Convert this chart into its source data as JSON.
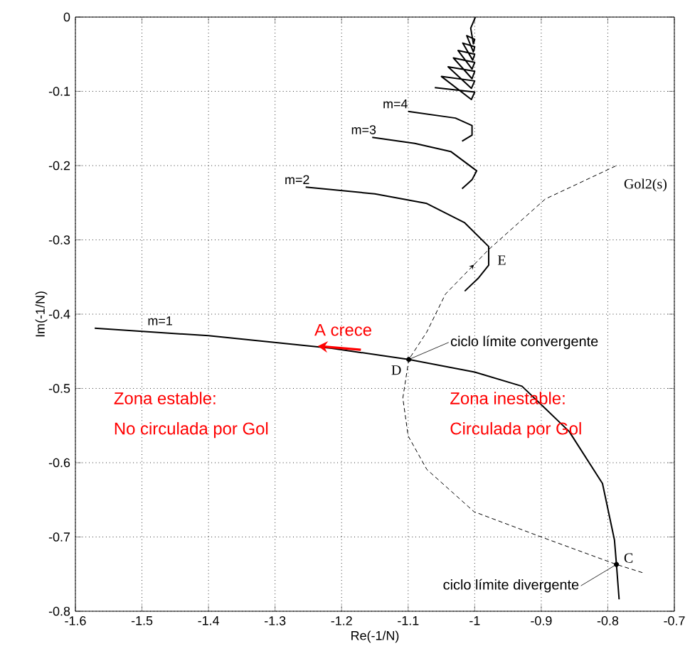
{
  "chart_data": {
    "type": "line",
    "xlabel": "Re(-1/N)",
    "ylabel": "Im(-1/N)",
    "xlim": [
      -1.6,
      -0.7
    ],
    "ylim": [
      -0.8,
      0
    ],
    "xticks": [
      -1.6,
      -1.5,
      -1.4,
      -1.3,
      -1.2,
      -1.1,
      -1,
      -0.9,
      -0.8,
      -0.7
    ],
    "yticks": [
      -0.8,
      -0.7,
      -0.6,
      -0.5,
      -0.4,
      -0.3,
      -0.2,
      -0.1,
      0
    ],
    "grid": true,
    "series": [
      {
        "name": "m=1",
        "type": "line",
        "color": "#000000",
        "line_style": "solid",
        "marker": "none",
        "x": [
          -1.571,
          -1.4,
          -1.215,
          -1.099,
          -1.0,
          -0.929,
          -0.858,
          -0.808,
          -0.79,
          -0.787,
          -0.783
        ],
        "values": [
          -0.419,
          -0.429,
          -0.446,
          -0.461,
          -0.478,
          -0.497,
          -0.558,
          -0.628,
          -0.704,
          -0.737,
          -0.784
        ]
      },
      {
        "name": "m=2",
        "type": "line",
        "color": "#000000",
        "line_style": "solid",
        "marker": "none",
        "x": [
          -1.254,
          -1.15,
          -1.072,
          -1.015,
          -0.979,
          -0.979,
          -0.995,
          -1.015
        ],
        "values": [
          -0.229,
          -0.238,
          -0.251,
          -0.277,
          -0.309,
          -0.334,
          -0.352,
          -0.369
        ]
      },
      {
        "name": "m=3",
        "type": "line",
        "color": "#000000",
        "line_style": "solid",
        "marker": "none",
        "x": [
          -1.154,
          -1.09,
          -1.036,
          -0.997,
          -1.004,
          -1.019
        ],
        "values": [
          -0.162,
          -0.17,
          -0.181,
          -0.207,
          -0.219,
          -0.231
        ]
      },
      {
        "name": "m=4",
        "type": "line",
        "color": "#000000",
        "line_style": "solid",
        "marker": "none",
        "x": [
          -1.1,
          -1.029,
          -1.004,
          -1.004,
          -1.019
        ],
        "values": [
          -0.127,
          -0.136,
          -0.146,
          -0.159,
          -0.167
        ]
      },
      {
        "color": "#000000",
        "line_style": "solid",
        "marker": "none",
        "x": [
          -1.06,
          -1.0,
          -1.005,
          -1.05,
          -1.0,
          -1.005,
          -1.04,
          -1.0,
          -1.004,
          -1.032,
          -1.0,
          -1.004,
          -1.025,
          -1.0,
          -1.003,
          -1.018,
          -1.0,
          -1.002,
          -1.012,
          -1.0,
          -1.002,
          -1.006,
          -0.999
        ],
        "values": [
          -0.095,
          -0.101,
          -0.111,
          -0.08,
          -0.086,
          -0.096,
          -0.067,
          -0.073,
          -0.083,
          -0.055,
          -0.061,
          -0.07,
          -0.045,
          -0.05,
          -0.058,
          -0.035,
          -0.04,
          -0.047,
          -0.025,
          -0.03,
          -0.036,
          -0.015,
          0
        ]
      },
      {
        "type": "line",
        "color": "#000000",
        "line_style": "dashed",
        "marker": "none",
        "x": [
          -0.748,
          -0.787,
          -0.9,
          -1.001,
          -1.072,
          -1.1,
          -1.108,
          -1.099,
          -1.072,
          -1.044,
          -0.979,
          -0.894,
          -0.787
        ],
        "values": [
          -0.748,
          -0.737,
          -0.7,
          -0.666,
          -0.609,
          -0.564,
          -0.513,
          -0.461,
          -0.424,
          -0.373,
          -0.313,
          -0.245,
          -0.2
        ]
      },
      {
        "type": "scatter",
        "color": "#000000",
        "marker": "circle",
        "x": [
          -1.099,
          -0.787
        ],
        "values": [
          -0.461,
          -0.737
        ]
      }
    ],
    "annotations": [
      {
        "text": "A crece",
        "x": -1.236,
        "y": -0.443
      },
      {
        "text": "ciclo límite convergente",
        "x": -1.099,
        "y": -0.461
      },
      {
        "text": "ciclo límite divergente",
        "x": -0.787,
        "y": -0.737
      },
      {
        "text": "D",
        "x": -1.099,
        "y": -0.461
      },
      {
        "text": "E",
        "x": -0.979,
        "y": -0.313
      },
      {
        "text": "C",
        "x": -0.787,
        "y": -0.737
      },
      {
        "text": "Gol2(s)",
        "x": -0.787,
        "y": -0.2
      },
      "Zona estable:",
      "No circulada por Gol",
      "Zona inestable:",
      "Circulada por Gol"
    ]
  }
}
